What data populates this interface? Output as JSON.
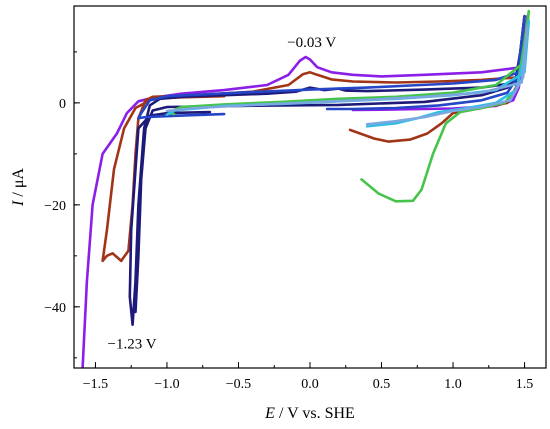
{
  "chart_data": {
    "type": "line",
    "xlabel_var": "E",
    "xlabel_rest": " / V vs. SHE",
    "ylabel_var": "I",
    "ylabel_rest": " / μA",
    "xlim": [
      -1.65,
      1.65
    ],
    "ylim": [
      -52,
      19
    ],
    "xticks": [
      -1.5,
      -1.0,
      -0.5,
      0.0,
      0.5,
      1.0,
      1.5
    ],
    "xtick_labels": [
      "−1.5",
      "−1.0",
      "−0.5",
      "0.0",
      "0.5",
      "1.0",
      "1.5"
    ],
    "yticks": [
      0,
      -20,
      -40
    ],
    "ytick_labels": [
      "0",
      "−20",
      "−40"
    ],
    "grid": false,
    "annotations": [
      {
        "text": "−0.03 V",
        "x": -0.03,
        "y": 9
      },
      {
        "text": "−1.23 V",
        "x": -1.23,
        "y": -43.5
      }
    ],
    "series": [
      {
        "color": "#8B1FE8",
        "points": [
          [
            0.3,
            -1.4
          ],
          [
            0.6,
            -1.3
          ],
          [
            1.0,
            -1.1
          ],
          [
            1.3,
            -0.6
          ],
          [
            1.42,
            0.5
          ],
          [
            1.46,
            3
          ],
          [
            1.5,
            12
          ],
          [
            1.52,
            17
          ],
          [
            1.48,
            7
          ],
          [
            1.2,
            6
          ],
          [
            0.8,
            5.5
          ],
          [
            0.5,
            5.2
          ],
          [
            0.3,
            5.5
          ],
          [
            0.15,
            6
          ],
          [
            0.05,
            7
          ],
          [
            0.0,
            8.5
          ],
          [
            -0.03,
            9
          ],
          [
            -0.07,
            8.3
          ],
          [
            -0.15,
            5.5
          ],
          [
            -0.3,
            3.5
          ],
          [
            -0.6,
            2.5
          ],
          [
            -0.9,
            1.8
          ],
          [
            -1.1,
            1.0
          ],
          [
            -1.2,
            0.3
          ],
          [
            -1.28,
            -2
          ],
          [
            -1.35,
            -6
          ],
          [
            -1.45,
            -10
          ],
          [
            -1.52,
            -20
          ],
          [
            -1.56,
            -35
          ],
          [
            -1.59,
            -52
          ]
        ]
      },
      {
        "color": "#A23518",
        "points": [
          [
            0.28,
            -5.3
          ],
          [
            0.45,
            -7
          ],
          [
            0.55,
            -7.6
          ],
          [
            0.7,
            -7.2
          ],
          [
            0.82,
            -6
          ],
          [
            0.92,
            -4
          ],
          [
            1.0,
            -2
          ],
          [
            1.2,
            -1
          ],
          [
            1.38,
            0
          ],
          [
            1.44,
            3
          ],
          [
            1.48,
            10
          ],
          [
            1.5,
            17
          ],
          [
            1.45,
            5
          ],
          [
            1.2,
            4.5
          ],
          [
            0.9,
            4.2
          ],
          [
            0.6,
            4.0
          ],
          [
            0.3,
            4.2
          ],
          [
            0.15,
            4.6
          ],
          [
            0.05,
            5.5
          ],
          [
            0.0,
            6
          ],
          [
            -0.05,
            5.6
          ],
          [
            -0.15,
            3.5
          ],
          [
            -0.4,
            2.2
          ],
          [
            -0.8,
            1.5
          ],
          [
            -1.1,
            1.2
          ],
          [
            -1.15,
            0.5
          ],
          [
            -1.2,
            -3
          ],
          [
            -1.22,
            -10
          ],
          [
            -1.24,
            -20
          ],
          [
            -1.27,
            -29
          ],
          [
            -1.32,
            -31
          ],
          [
            -1.38,
            -29.5
          ],
          [
            -1.42,
            -30
          ],
          [
            -1.45,
            -31
          ],
          [
            -1.42,
            -25
          ],
          [
            -1.37,
            -13
          ],
          [
            -1.3,
            -5
          ],
          [
            -1.22,
            -1
          ],
          [
            -1.1,
            0.8
          ],
          [
            -0.9,
            1.1
          ],
          [
            -0.6,
            1.3
          ]
        ]
      },
      {
        "color": "#1E1A7A",
        "points": [
          [
            -1.22,
            -41
          ],
          [
            -1.2,
            -30
          ],
          [
            -1.18,
            -15
          ],
          [
            -1.15,
            -5
          ],
          [
            -1.1,
            -1.5
          ],
          [
            -1.0,
            -0.8
          ],
          [
            -0.5,
            -0.6
          ],
          [
            0.2,
            -0.4
          ],
          [
            0.8,
            0.2
          ],
          [
            1.2,
            1.5
          ],
          [
            1.38,
            3
          ],
          [
            1.44,
            5
          ],
          [
            1.47,
            10
          ],
          [
            1.5,
            17
          ],
          [
            1.45,
            4
          ],
          [
            1.2,
            3.0
          ],
          [
            0.8,
            2.6
          ],
          [
            0.4,
            2.3
          ],
          [
            0.25,
            2.4
          ],
          [
            0.2,
            2.8
          ],
          [
            0.1,
            2.5
          ],
          [
            0.0,
            3.0
          ],
          [
            -0.1,
            2.2
          ],
          [
            -0.3,
            1.8
          ],
          [
            -0.6,
            1.5
          ],
          [
            -0.9,
            1.2
          ],
          [
            -1.05,
            0.8
          ],
          [
            -1.12,
            -0.5
          ],
          [
            -1.16,
            -5
          ],
          [
            -1.2,
            -20
          ],
          [
            -1.22,
            -35
          ],
          [
            -1.24,
            -43.5
          ],
          [
            -1.26,
            -38
          ],
          [
            -1.25,
            -25
          ],
          [
            -1.2,
            -5
          ],
          [
            -1.12,
            -2.5
          ],
          [
            -1.0,
            -2.0
          ],
          [
            -0.7,
            -1.8
          ]
        ]
      },
      {
        "color": "#2546C7",
        "points": [
          [
            0.12,
            -1.2
          ],
          [
            0.3,
            -1.2
          ],
          [
            0.6,
            -1.0
          ],
          [
            0.9,
            -0.5
          ],
          [
            1.2,
            0.5
          ],
          [
            1.38,
            2
          ],
          [
            1.45,
            5
          ],
          [
            1.5,
            17
          ],
          [
            1.46,
            6
          ],
          [
            1.3,
            4.5
          ],
          [
            1.0,
            3.8
          ],
          [
            0.7,
            3.4
          ],
          [
            0.4,
            3.0
          ],
          [
            0.0,
            2.6
          ],
          [
            -0.5,
            2.0
          ],
          [
            -1.0,
            1.3
          ],
          [
            -1.12,
            0.5
          ],
          [
            -1.18,
            -2
          ],
          [
            -1.2,
            -3
          ],
          [
            -1.15,
            -2.8
          ],
          [
            -0.9,
            -2.5
          ],
          [
            -0.6,
            -2.2
          ]
        ]
      },
      {
        "color": "#46C44A",
        "points": [
          [
            0.36,
            -15
          ],
          [
            0.48,
            -17.8
          ],
          [
            0.6,
            -19.3
          ],
          [
            0.72,
            -19.2
          ],
          [
            0.78,
            -17
          ],
          [
            0.86,
            -10
          ],
          [
            0.95,
            -4
          ],
          [
            1.05,
            -1.8
          ],
          [
            1.2,
            -1
          ],
          [
            1.36,
            0
          ],
          [
            1.45,
            3
          ],
          [
            1.5,
            12
          ],
          [
            1.53,
            18
          ],
          [
            1.5,
            8
          ],
          [
            1.3,
            3.5
          ],
          [
            1.0,
            2.0
          ],
          [
            0.6,
            1.2
          ],
          [
            0.2,
            0.8
          ],
          [
            -0.2,
            0.2
          ],
          [
            -0.6,
            -0.3
          ],
          [
            -0.9,
            -0.8
          ],
          [
            -0.98,
            -1.8
          ],
          [
            -0.95,
            -2.2
          ]
        ]
      },
      {
        "color": "#2FBFE5",
        "points": [
          [
            0.4,
            -4.6
          ],
          [
            0.6,
            -4.0
          ],
          [
            0.75,
            -3.0
          ],
          [
            0.9,
            -1.8
          ],
          [
            1.1,
            -1.0
          ],
          [
            1.3,
            0
          ],
          [
            1.44,
            2.5
          ],
          [
            1.49,
            8
          ],
          [
            1.53,
            16
          ],
          [
            1.5,
            6
          ],
          [
            1.3,
            2.5
          ],
          [
            1.0,
            1.5
          ],
          [
            0.6,
            0.8
          ],
          [
            0.2,
            0.3
          ],
          [
            -0.2,
            -0.2
          ],
          [
            -0.6,
            -0.6
          ],
          [
            -0.95,
            -1.5
          ],
          [
            -1.0,
            -2.3
          ]
        ]
      },
      {
        "color": "#7AA7E0",
        "points": [
          [
            0.4,
            -4.2
          ],
          [
            0.6,
            -3.6
          ],
          [
            0.8,
            -2.8
          ],
          [
            1.0,
            -1.6
          ],
          [
            1.2,
            -0.8
          ],
          [
            1.4,
            0.5
          ],
          [
            1.49,
            5
          ],
          [
            1.52,
            15
          ],
          [
            1.48,
            4
          ],
          [
            1.2,
            2.0
          ],
          [
            0.8,
            1.2
          ],
          [
            0.4,
            0.6
          ],
          [
            0.0,
            0.1
          ],
          [
            -0.4,
            -0.4
          ],
          [
            -0.8,
            -1.0
          ],
          [
            -1.0,
            -1.6
          ]
        ]
      }
    ]
  }
}
